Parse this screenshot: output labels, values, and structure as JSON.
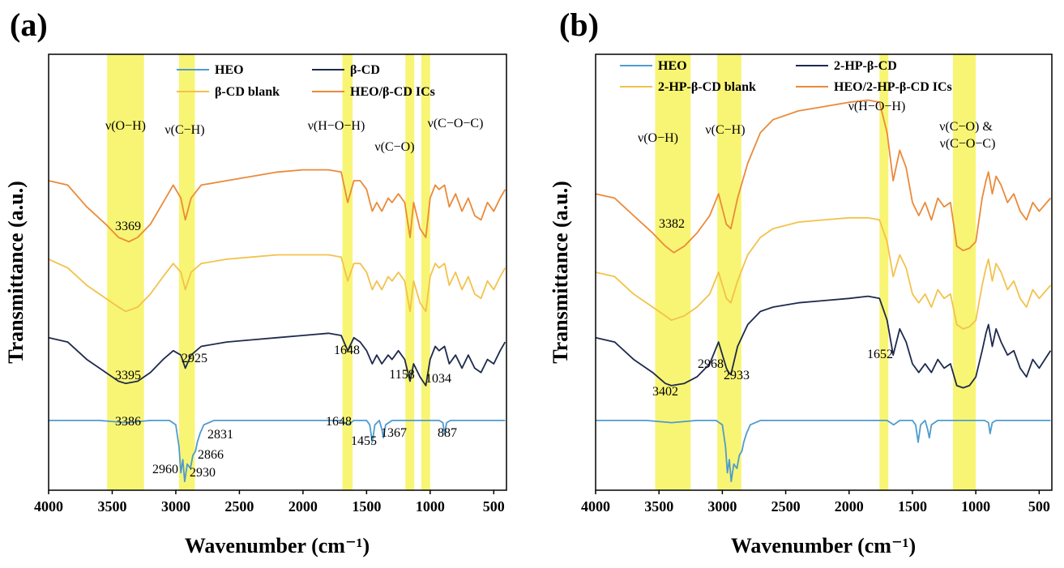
{
  "chart_data": [
    {
      "type": "line",
      "panel_label": "(a)",
      "xlabel": "Wavenumber (cm⁻¹)",
      "ylabel": "Transmittance (a.u.)",
      "xlim": [
        4000,
        400
      ],
      "ylim": [
        0,
        1
      ],
      "xticks": [
        4000,
        3500,
        3000,
        2500,
        2000,
        1500,
        1000,
        500
      ],
      "legend": [
        "HEO",
        "β-CD",
        "β-CD blank",
        "HEO/β-CD ICs"
      ],
      "highlight_bands": [
        [
          3540,
          3250
        ],
        [
          2975,
          2850
        ],
        [
          1690,
          1610
        ],
        [
          1195,
          1125
        ],
        [
          1070,
          1000
        ]
      ],
      "band_labels": [
        "ν(O−H)",
        "ν(C−H)",
        "ν(H−O−H)",
        "ν(C−O)",
        "ν(C−O−C)"
      ],
      "peak_labels": [
        "3369",
        "3395",
        "2925",
        "1648",
        "1158",
        "1034",
        "3386",
        "2960",
        "2930",
        "2866",
        "2831",
        "1648",
        "1455",
        "1367",
        "887"
      ],
      "series": [
        {
          "name": "HEO/β-CD ICs",
          "color": "#ea8a3a",
          "x": [
            4000,
            3850,
            3700,
            3550,
            3450,
            3369,
            3300,
            3200,
            3100,
            3020,
            2960,
            2925,
            2880,
            2800,
            2600,
            2400,
            2200,
            2000,
            1800,
            1700,
            1648,
            1600,
            1550,
            1500,
            1455,
            1420,
            1380,
            1330,
            1300,
            1250,
            1200,
            1158,
            1130,
            1080,
            1034,
            1000,
            960,
            930,
            887,
            850,
            800,
            750,
            700,
            650,
            600,
            550,
            500,
            450,
            410
          ],
          "y": [
            0.71,
            0.7,
            0.65,
            0.61,
            0.58,
            0.57,
            0.58,
            0.61,
            0.66,
            0.7,
            0.67,
            0.62,
            0.67,
            0.7,
            0.71,
            0.72,
            0.73,
            0.735,
            0.735,
            0.73,
            0.66,
            0.71,
            0.71,
            0.69,
            0.64,
            0.66,
            0.64,
            0.67,
            0.66,
            0.68,
            0.66,
            0.58,
            0.66,
            0.6,
            0.58,
            0.67,
            0.7,
            0.69,
            0.7,
            0.65,
            0.68,
            0.64,
            0.67,
            0.63,
            0.62,
            0.66,
            0.64,
            0.67,
            0.69
          ]
        },
        {
          "name": "β-CD blank",
          "color": "#f2c24b",
          "x": [
            4000,
            3850,
            3700,
            3550,
            3450,
            3395,
            3300,
            3200,
            3100,
            3020,
            2960,
            2925,
            2880,
            2800,
            2600,
            2400,
            2200,
            2000,
            1800,
            1700,
            1648,
            1600,
            1550,
            1500,
            1455,
            1420,
            1380,
            1330,
            1300,
            1250,
            1200,
            1158,
            1130,
            1080,
            1034,
            1000,
            960,
            930,
            887,
            850,
            800,
            750,
            700,
            650,
            600,
            550,
            500,
            450,
            410
          ],
          "y": [
            0.53,
            0.51,
            0.47,
            0.44,
            0.42,
            0.41,
            0.42,
            0.45,
            0.49,
            0.52,
            0.5,
            0.46,
            0.5,
            0.52,
            0.53,
            0.535,
            0.54,
            0.54,
            0.54,
            0.535,
            0.48,
            0.52,
            0.52,
            0.5,
            0.46,
            0.48,
            0.46,
            0.49,
            0.48,
            0.5,
            0.48,
            0.41,
            0.48,
            0.43,
            0.41,
            0.49,
            0.52,
            0.51,
            0.52,
            0.47,
            0.5,
            0.46,
            0.49,
            0.45,
            0.44,
            0.48,
            0.46,
            0.49,
            0.51
          ]
        },
        {
          "name": "β-CD",
          "color": "#1e2a4d",
          "x": [
            4000,
            3850,
            3700,
            3550,
            3450,
            3395,
            3300,
            3200,
            3100,
            3020,
            2960,
            2925,
            2880,
            2800,
            2600,
            2400,
            2200,
            2000,
            1800,
            1700,
            1648,
            1600,
            1550,
            1500,
            1455,
            1420,
            1380,
            1330,
            1300,
            1250,
            1200,
            1158,
            1130,
            1080,
            1034,
            1000,
            960,
            930,
            887,
            850,
            800,
            750,
            700,
            650,
            600,
            550,
            500,
            450,
            410
          ],
          "y": [
            0.35,
            0.34,
            0.3,
            0.27,
            0.25,
            0.245,
            0.25,
            0.27,
            0.3,
            0.32,
            0.31,
            0.28,
            0.31,
            0.33,
            0.34,
            0.345,
            0.35,
            0.355,
            0.36,
            0.355,
            0.32,
            0.35,
            0.34,
            0.32,
            0.29,
            0.31,
            0.29,
            0.31,
            0.3,
            0.32,
            0.3,
            0.25,
            0.29,
            0.26,
            0.24,
            0.3,
            0.33,
            0.32,
            0.33,
            0.29,
            0.31,
            0.28,
            0.31,
            0.28,
            0.27,
            0.3,
            0.29,
            0.32,
            0.34
          ]
        },
        {
          "name": "HEO",
          "color": "#4f9bcf",
          "x": [
            4000,
            3600,
            3386,
            3200,
            3050,
            3000,
            2975,
            2960,
            2945,
            2930,
            2910,
            2885,
            2866,
            2845,
            2831,
            2810,
            2780,
            2700,
            2500,
            2000,
            1700,
            1648,
            1600,
            1500,
            1475,
            1455,
            1435,
            1400,
            1380,
            1367,
            1350,
            1300,
            1200,
            1100,
            1000,
            930,
            900,
            887,
            870,
            840,
            700,
            500,
            410
          ],
          "y": [
            0.16,
            0.16,
            0.155,
            0.16,
            0.16,
            0.15,
            0.1,
            0.04,
            0.07,
            0.02,
            0.06,
            0.05,
            0.08,
            0.09,
            0.11,
            0.13,
            0.15,
            0.16,
            0.16,
            0.16,
            0.16,
            0.15,
            0.16,
            0.16,
            0.15,
            0.11,
            0.15,
            0.16,
            0.14,
            0.12,
            0.15,
            0.16,
            0.16,
            0.16,
            0.16,
            0.16,
            0.155,
            0.13,
            0.155,
            0.16,
            0.16,
            0.16,
            0.16
          ]
        }
      ]
    },
    {
      "type": "line",
      "panel_label": "(b)",
      "xlabel": "Wavenumber (cm⁻¹)",
      "ylabel": "Transmittance (a.u.)",
      "xlim": [
        4000,
        400
      ],
      "ylim": [
        0,
        1
      ],
      "xticks": [
        4000,
        3500,
        3000,
        2500,
        2000,
        1500,
        1000,
        500
      ],
      "legend": [
        "HEO",
        "2-HP-β-CD",
        "2-HP-β-CD blank",
        "HEO/2-HP-β-CD ICs"
      ],
      "highlight_bands": [
        [
          3530,
          3250
        ],
        [
          3040,
          2850
        ],
        [
          1760,
          1690
        ],
        [
          1180,
          1000
        ]
      ],
      "band_labels": [
        "ν(O−H)",
        "ν(C−H)",
        "ν(H−O−H)",
        "ν(C−O) &",
        "ν(C−O−C)"
      ],
      "peak_labels": [
        "3382",
        "3402",
        "2968",
        "2933",
        "1652"
      ],
      "series": [
        {
          "name": "HEO/2-HP-β-CD ICs",
          "color": "#ea8a3a",
          "x": [
            4000,
            3850,
            3700,
            3550,
            3450,
            3382,
            3300,
            3200,
            3100,
            3030,
            2968,
            2933,
            2880,
            2800,
            2700,
            2600,
            2400,
            2200,
            2000,
            1850,
            1760,
            1700,
            1652,
            1600,
            1550,
            1500,
            1450,
            1400,
            1350,
            1300,
            1250,
            1200,
            1150,
            1100,
            1050,
            1000,
            950,
            920,
            900,
            870,
            840,
            800,
            750,
            700,
            650,
            600,
            550,
            500,
            410
          ],
          "y": [
            0.68,
            0.67,
            0.63,
            0.59,
            0.56,
            0.545,
            0.56,
            0.59,
            0.63,
            0.68,
            0.61,
            0.6,
            0.67,
            0.75,
            0.82,
            0.85,
            0.87,
            0.88,
            0.89,
            0.895,
            0.89,
            0.82,
            0.71,
            0.78,
            0.74,
            0.66,
            0.63,
            0.66,
            0.62,
            0.67,
            0.65,
            0.66,
            0.56,
            0.55,
            0.555,
            0.57,
            0.67,
            0.71,
            0.73,
            0.68,
            0.72,
            0.7,
            0.66,
            0.68,
            0.64,
            0.62,
            0.66,
            0.64,
            0.67
          ]
        },
        {
          "name": "2-HP-β-CD blank",
          "color": "#f2c24b",
          "x": [
            4000,
            3850,
            3700,
            3550,
            3450,
            3402,
            3300,
            3200,
            3100,
            3030,
            2968,
            2933,
            2880,
            2800,
            2700,
            2600,
            2400,
            2200,
            2000,
            1850,
            1760,
            1700,
            1652,
            1600,
            1550,
            1500,
            1450,
            1400,
            1350,
            1300,
            1250,
            1200,
            1150,
            1100,
            1050,
            1000,
            950,
            920,
            900,
            870,
            840,
            800,
            750,
            700,
            650,
            600,
            550,
            500,
            410
          ],
          "y": [
            0.5,
            0.49,
            0.45,
            0.42,
            0.4,
            0.39,
            0.4,
            0.42,
            0.45,
            0.5,
            0.44,
            0.43,
            0.48,
            0.54,
            0.58,
            0.6,
            0.615,
            0.62,
            0.625,
            0.625,
            0.62,
            0.57,
            0.49,
            0.54,
            0.51,
            0.45,
            0.43,
            0.45,
            0.42,
            0.46,
            0.44,
            0.45,
            0.38,
            0.37,
            0.375,
            0.39,
            0.47,
            0.51,
            0.53,
            0.48,
            0.52,
            0.5,
            0.46,
            0.48,
            0.44,
            0.42,
            0.46,
            0.44,
            0.47
          ]
        },
        {
          "name": "2-HP-β-CD",
          "color": "#1e2a4d",
          "x": [
            4000,
            3850,
            3700,
            3550,
            3450,
            3402,
            3300,
            3200,
            3100,
            3030,
            2968,
            2950,
            2933,
            2880,
            2800,
            2700,
            2600,
            2400,
            2200,
            2000,
            1850,
            1760,
            1700,
            1652,
            1600,
            1550,
            1500,
            1450,
            1400,
            1350,
            1300,
            1250,
            1200,
            1150,
            1100,
            1050,
            1000,
            950,
            920,
            900,
            870,
            840,
            800,
            750,
            700,
            650,
            600,
            550,
            500,
            410
          ],
          "y": [
            0.35,
            0.34,
            0.3,
            0.27,
            0.245,
            0.24,
            0.245,
            0.26,
            0.29,
            0.34,
            0.28,
            0.27,
            0.265,
            0.33,
            0.38,
            0.41,
            0.42,
            0.43,
            0.435,
            0.44,
            0.445,
            0.44,
            0.39,
            0.31,
            0.37,
            0.34,
            0.29,
            0.27,
            0.29,
            0.27,
            0.3,
            0.28,
            0.29,
            0.24,
            0.235,
            0.24,
            0.26,
            0.32,
            0.36,
            0.38,
            0.33,
            0.37,
            0.34,
            0.31,
            0.32,
            0.28,
            0.26,
            0.3,
            0.28,
            0.32
          ]
        },
        {
          "name": "HEO",
          "color": "#4f9bcf",
          "x": [
            4000,
            3600,
            3400,
            3200,
            3050,
            3000,
            2975,
            2960,
            2945,
            2930,
            2910,
            2885,
            2866,
            2845,
            2831,
            2810,
            2780,
            2700,
            2500,
            2000,
            1700,
            1648,
            1600,
            1500,
            1475,
            1455,
            1435,
            1400,
            1380,
            1367,
            1350,
            1300,
            1200,
            1100,
            1000,
            930,
            900,
            887,
            870,
            840,
            700,
            500,
            410
          ],
          "y": [
            0.16,
            0.16,
            0.155,
            0.16,
            0.16,
            0.15,
            0.1,
            0.04,
            0.07,
            0.02,
            0.06,
            0.05,
            0.08,
            0.09,
            0.11,
            0.13,
            0.15,
            0.16,
            0.16,
            0.16,
            0.16,
            0.15,
            0.16,
            0.16,
            0.15,
            0.11,
            0.15,
            0.16,
            0.14,
            0.12,
            0.15,
            0.16,
            0.16,
            0.16,
            0.16,
            0.16,
            0.155,
            0.13,
            0.155,
            0.16,
            0.16,
            0.16,
            0.16
          ]
        }
      ]
    }
  ]
}
